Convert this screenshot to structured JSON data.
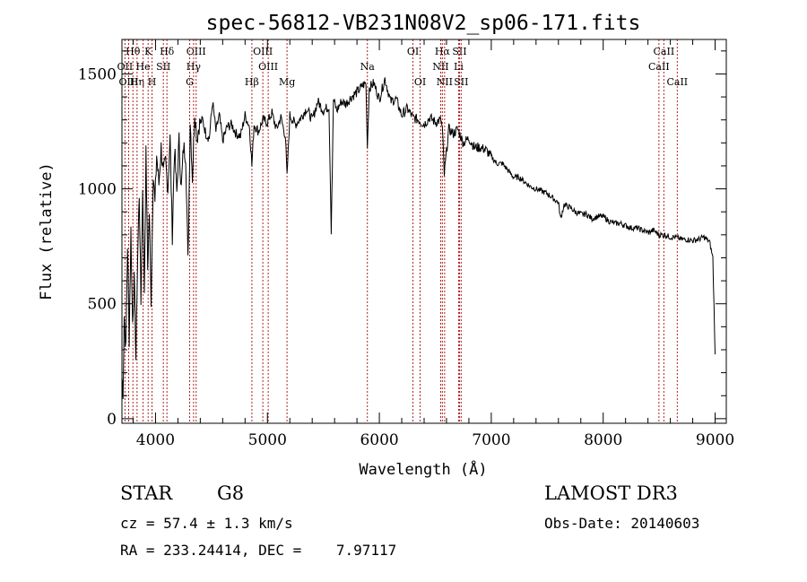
{
  "chart_data": {
    "type": "line",
    "title": "spec-56812-VB231N08V2_sp06-171.fits",
    "xlabel": "Wavelength (Å)",
    "ylabel": "Flux (relative)",
    "xlim": [
      3700,
      9100
    ],
    "ylim": [
      -20,
      1650
    ],
    "x_ticks": [
      4000,
      5000,
      6000,
      7000,
      8000,
      9000
    ],
    "y_ticks": [
      0,
      500,
      1000,
      1500
    ],
    "series": [
      {
        "name": "flux",
        "x": [
          3700,
          3710,
          3720,
          3735,
          3750,
          3765,
          3780,
          3795,
          3810,
          3825,
          3840,
          3855,
          3870,
          3885,
          3900,
          3915,
          3930,
          3945,
          3960,
          3970,
          3980,
          3995,
          4010,
          4030,
          4050,
          4070,
          4090,
          4110,
          4130,
          4150,
          4170,
          4190,
          4210,
          4230,
          4250,
          4270,
          4290,
          4310,
          4330,
          4350,
          4370,
          4390,
          4420,
          4450,
          4480,
          4510,
          4540,
          4570,
          4600,
          4640,
          4680,
          4720,
          4760,
          4800,
          4840,
          4861,
          4880,
          4920,
          4960,
          5000,
          5040,
          5080,
          5120,
          5160,
          5175,
          5200,
          5250,
          5300,
          5350,
          5400,
          5450,
          5500,
          5550,
          5570,
          5590,
          5620,
          5660,
          5700,
          5750,
          5800,
          5850,
          5880,
          5893,
          5910,
          5950,
          6000,
          6050,
          6100,
          6150,
          6200,
          6250,
          6300,
          6350,
          6400,
          6450,
          6500,
          6550,
          6563,
          6580,
          6620,
          6660,
          6700,
          6750,
          6800,
          6850,
          6900,
          6950,
          7000,
          7050,
          7100,
          7150,
          7200,
          7250,
          7300,
          7350,
          7400,
          7450,
          7500,
          7550,
          7600,
          7620,
          7650,
          7700,
          7750,
          7800,
          7850,
          7900,
          7950,
          8000,
          8050,
          8100,
          8150,
          8200,
          8250,
          8300,
          8350,
          8400,
          8450,
          8500,
          8550,
          8600,
          8650,
          8700,
          8750,
          8800,
          8850,
          8900,
          8950,
          8980,
          9000
        ],
        "values": [
          180,
          120,
          450,
          300,
          760,
          350,
          820,
          420,
          600,
          260,
          700,
          980,
          500,
          1010,
          560,
          1150,
          650,
          900,
          520,
          780,
          1080,
          930,
          1150,
          1020,
          1180,
          1060,
          1120,
          1000,
          1220,
          800,
          1180,
          980,
          1210,
          1000,
          1180,
          1150,
          680,
          1300,
          1050,
          1340,
          1220,
          1280,
          1300,
          1240,
          1220,
          1380,
          1250,
          1320,
          1210,
          1270,
          1280,
          1240,
          1230,
          1320,
          1270,
          1100,
          1280,
          1250,
          1300,
          1290,
          1330,
          1260,
          1310,
          1230,
          1050,
          1320,
          1280,
          1310,
          1350,
          1300,
          1380,
          1340,
          1360,
          820,
          1390,
          1340,
          1380,
          1370,
          1400,
          1420,
          1450,
          1460,
          1180,
          1440,
          1460,
          1390,
          1480,
          1380,
          1390,
          1320,
          1350,
          1310,
          1300,
          1280,
          1310,
          1290,
          1300,
          1260,
          1060,
          1260,
          1240,
          1260,
          1200,
          1220,
          1180,
          1180,
          1170,
          1140,
          1110,
          1110,
          1080,
          1050,
          1050,
          1030,
          1010,
          1000,
          990,
          980,
          960,
          940,
          870,
          930,
          920,
          900,
          890,
          890,
          870,
          880,
          880,
          860,
          850,
          850,
          840,
          830,
          830,
          820,
          810,
          820,
          800,
          800,
          790,
          790,
          780,
          780,
          775,
          780,
          790,
          770,
          700,
          280
        ]
      }
    ],
    "line_markers": [
      {
        "label": "Hθ",
        "x": 3798,
        "row": 1
      },
      {
        "label": "OII",
        "x": 3727,
        "row": 2
      },
      {
        "label": "OIII",
        "x": 3760,
        "row": 3
      },
      {
        "label": "Hη",
        "x": 3835,
        "row": 3
      },
      {
        "label": "K",
        "x": 3934,
        "row": 1
      },
      {
        "label": "He",
        "x": 3889,
        "row": 2
      },
      {
        "label": "SII",
        "x": 4070,
        "row": 2
      },
      {
        "label": "H",
        "x": 3969,
        "row": 3
      },
      {
        "label": "Hδ",
        "x": 4102,
        "row": 1
      },
      {
        "label": "OIII",
        "x": 4363,
        "row": 1
      },
      {
        "label": "Hγ",
        "x": 4340,
        "row": 2
      },
      {
        "label": "G",
        "x": 4305,
        "row": 3
      },
      {
        "label": "OIII",
        "x": 4959,
        "row": 1
      },
      {
        "label": "OIII",
        "x": 5007,
        "row": 2
      },
      {
        "label": "Hβ",
        "x": 4861,
        "row": 3
      },
      {
        "label": "Mg",
        "x": 5175,
        "row": 3
      },
      {
        "label": "Na",
        "x": 5893,
        "row": 2
      },
      {
        "label": "OI",
        "x": 6300,
        "row": 1
      },
      {
        "label": "OI",
        "x": 6364,
        "row": 3
      },
      {
        "label": "Hα",
        "x": 6563,
        "row": 1
      },
      {
        "label": "SII",
        "x": 6716,
        "row": 1
      },
      {
        "label": "NII",
        "x": 6548,
        "row": 2
      },
      {
        "label": "Li",
        "x": 6708,
        "row": 2
      },
      {
        "label": "NII",
        "x": 6583,
        "row": 3
      },
      {
        "label": "SII",
        "x": 6731,
        "row": 3
      },
      {
        "label": "CaII",
        "x": 8542,
        "row": 1
      },
      {
        "label": "CaII",
        "x": 8498,
        "row": 2
      },
      {
        "label": "CaII",
        "x": 8662,
        "row": 3
      }
    ]
  },
  "info": {
    "object_class": "STAR",
    "subclass": "G8",
    "cz": "cz = 57.4 ± 1.3 km/s",
    "coords": "RA = 233.24414, DEC =    7.97117",
    "survey": "LAMOST DR3",
    "obs_date": "Obs-Date: 20140603"
  }
}
